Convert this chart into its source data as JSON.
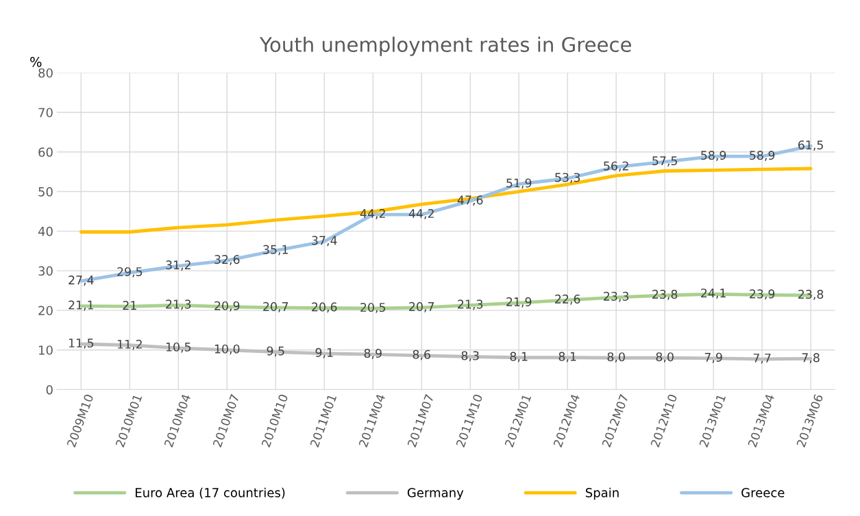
{
  "chart_data": {
    "type": "line",
    "title": "Youth unemployment rates in Greece",
    "ylabel": "%",
    "categories": [
      "2009M10",
      "2010M01",
      "2010M04",
      "2010M07",
      "2010M10",
      "2011M01",
      "2011M04",
      "2011M07",
      "2011M10",
      "2012M01",
      "2012M04",
      "2012M07",
      "2012M10",
      "2013M01",
      "2013M04",
      "2013M06"
    ],
    "ylim": [
      0,
      80
    ],
    "yticks": [
      0,
      10,
      20,
      30,
      40,
      50,
      60,
      70,
      80
    ],
    "grid": true,
    "legend": "bottom",
    "line_style": "solid",
    "marker": "none",
    "series": [
      {
        "name": "Euro Area (17 countries)",
        "color": "#a9d18e",
        "values": [
          21.1,
          21,
          21.3,
          20.9,
          20.7,
          20.6,
          20.5,
          20.7,
          21.3,
          21.9,
          22.6,
          23.3,
          23.8,
          24.1,
          23.9,
          23.8
        ],
        "value_labels": [
          "21,1",
          "21",
          "21,3",
          "20,9",
          "20,7",
          "20,6",
          "20,5",
          "20,7",
          "21,3",
          "21,9",
          "22,6",
          "23,3",
          "23,8",
          "24,1",
          "23,9",
          "23,8"
        ]
      },
      {
        "name": "Germany",
        "color": "#bfbfbf",
        "values": [
          11.5,
          11.2,
          10.5,
          10.0,
          9.5,
          9.1,
          8.9,
          8.6,
          8.3,
          8.1,
          8.1,
          8.0,
          8.0,
          7.9,
          7.7,
          7.8
        ],
        "value_labels": [
          "11,5",
          "11,2",
          "10,5",
          "10,0",
          "9,5",
          "9,1",
          "8,9",
          "8,6",
          "8,3",
          "8,1",
          "8,1",
          "8,0",
          "8,0",
          "7,9",
          "7,7",
          "7,8"
        ]
      },
      {
        "name": "Spain",
        "color": "#ffc000",
        "values": [
          39.8,
          39.8,
          40.9,
          41.6,
          42.8,
          43.8,
          44.9,
          46.8,
          48.2,
          50.0,
          51.8,
          54.0,
          55.2,
          55.4,
          55.6,
          55.8
        ]
      },
      {
        "name": "Greece",
        "color": "#9dc3e6",
        "values": [
          27.4,
          29.5,
          31.2,
          32.6,
          35.1,
          37.4,
          44.2,
          44.2,
          47.6,
          51.9,
          53.3,
          56.2,
          57.5,
          58.9,
          58.9,
          61.5
        ],
        "value_labels": [
          "27,4",
          "29,5",
          "31,2",
          "32,6",
          "35,1",
          "37,4",
          "44,2",
          "44,2",
          "47,6",
          "51,9",
          "53,3",
          "56,2",
          "57,5",
          "58,9",
          "58,9",
          "61,5"
        ]
      }
    ]
  }
}
